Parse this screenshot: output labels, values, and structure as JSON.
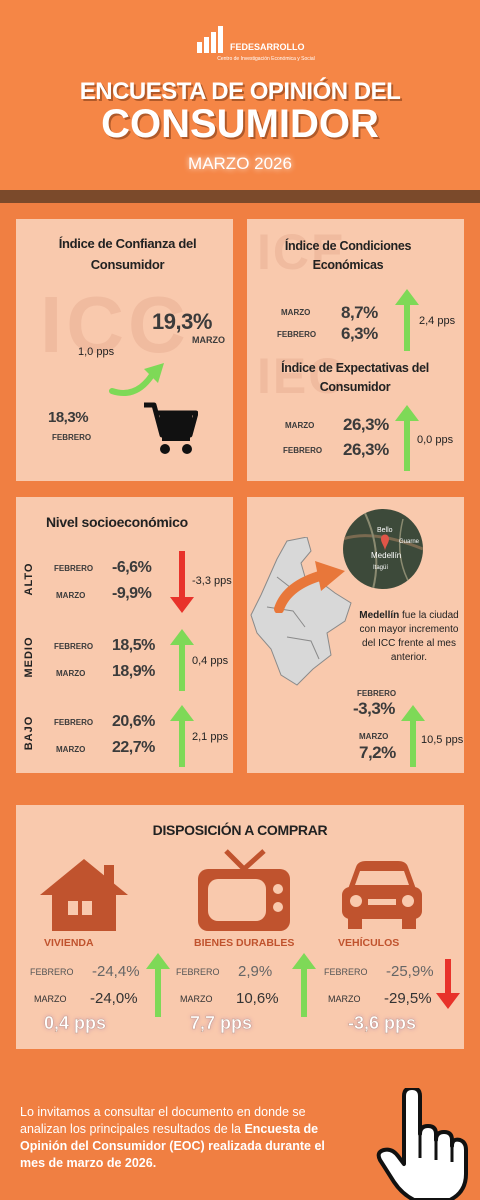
{
  "header": {
    "org_name": "FEDESARROLLO",
    "org_subtitle": "Centro de Investigación Económica y Social",
    "title_line1": "ENCUESTA DE OPINIÓN DEL",
    "title_line2": "CONSUMIDOR",
    "period": "MARZO 2026"
  },
  "icc": {
    "title": "Índice de Confianza del Consumidor",
    "ghost": "ICC",
    "march_value": "19,3%",
    "march_label": "MARZO",
    "change": "1,0 pps",
    "feb_value": "18,3%",
    "feb_label": "FEBRERO"
  },
  "ice": {
    "title": "Índice de Condiciones Económicas",
    "ghost": "ICE",
    "march_label": "MARZO",
    "march_value": "8,7%",
    "feb_label": "FEBRERO",
    "feb_value": "6,3%",
    "change": "2,4 pps"
  },
  "iec": {
    "title": "Índice de Expectativas del Consumidor",
    "ghost": "IEC",
    "march_label": "MARZO",
    "march_value": "26,3%",
    "feb_label": "FEBRERO",
    "feb_value": "26,3%",
    "change": "0,0 pps"
  },
  "nse": {
    "title": "Nivel socioeconómico",
    "rows": [
      {
        "level": "ALTO",
        "feb_label": "FEBRERO",
        "feb_value": "-6,6%",
        "mar_label": "MARZO",
        "mar_value": "-9,9%",
        "change": "-3,3 pps",
        "direction": "down"
      },
      {
        "level": "MEDIO",
        "feb_label": "FEBRERO",
        "feb_value": "18,5%",
        "mar_label": "MARZO",
        "mar_value": "18,9%",
        "change": "0,4 pps",
        "direction": "up"
      },
      {
        "level": "BAJO",
        "feb_label": "FEBRERO",
        "feb_value": "20,6%",
        "mar_label": "MARZO",
        "mar_value": "22,7%",
        "change": "2,1 pps",
        "direction": "up"
      }
    ]
  },
  "city": {
    "map_labels": {
      "bello": "Bello",
      "guarne": "Guarne",
      "medellin": "Medellín",
      "itagui": "Itagüí"
    },
    "city_name": "Medellín",
    "text": "fue la ciudad con mayor incremento del ICC frente al mes anterior.",
    "feb_label": "FEBRERO",
    "feb_value": "-3,3%",
    "mar_label": "MARZO",
    "mar_value": "7,2%",
    "change": "10,5 pps"
  },
  "purchase": {
    "title": "DISPOSICIÓN A COMPRAR",
    "items": [
      {
        "name": "VIVIENDA",
        "feb_label": "FEBRERO",
        "feb_value": "-24,4%",
        "mar_label": "MARZO",
        "mar_value": "-24,0%",
        "change": "0,4 pps",
        "direction": "up",
        "icon": "house-icon"
      },
      {
        "name": "BIENES DURABLES",
        "feb_label": "FEBRERO",
        "feb_value": "2,9%",
        "mar_label": "MARZO",
        "mar_value": "10,6%",
        "change": "7,7 pps",
        "direction": "up",
        "icon": "tv-icon"
      },
      {
        "name": "VEHÍCULOS",
        "feb_label": "FEBRERO",
        "feb_value": "-25,9%",
        "mar_label": "MARZO",
        "mar_value": "-29,5%",
        "change": "-3,6 pps",
        "direction": "down",
        "icon": "car-icon"
      }
    ]
  },
  "footer": {
    "text_plain": "Lo invitamos a consultar el documento en donde se analizan los principales resultados de la",
    "text_bold": "Encuesta de Opinión del Consumidor (EOC) realizada durante el mes de marzo de 2026."
  },
  "colors": {
    "orange": "#f58646",
    "panel": "#f9c9ad",
    "up_arrow": "#7ed957",
    "down_arrow": "#e8322a",
    "brown": "#c0532e"
  }
}
